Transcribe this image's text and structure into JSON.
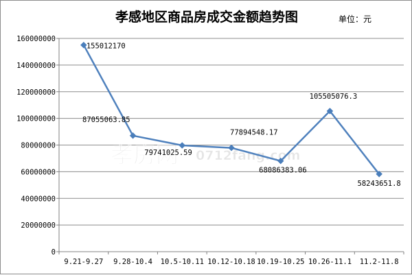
{
  "chart_data": {
    "type": "line",
    "title": "孝感地区商品房成交金额趋势图",
    "unit_label": "单位：元",
    "xlabel": "",
    "ylabel": "",
    "categories": [
      "9.21-9.27",
      "9.28-10.4",
      "10.5-10.11",
      "10.12-10.18",
      "10.19-10.25",
      "10.26-11.1",
      "11.2-11.8"
    ],
    "series": [
      {
        "values": [
          155012170,
          87055063.85,
          79741025.59,
          77894548.17,
          68086383.06,
          105505076.3,
          58243651.8
        ],
        "labels": [
          "155012170",
          "87055063.85",
          "79741025.59",
          "77894548.17",
          "68086383.06",
          "105505076.3",
          "58243651.8"
        ]
      }
    ],
    "y_ticks": [
      "0",
      "20000000",
      "40000000",
      "60000000",
      "80000000",
      "100000000",
      "120000000",
      "140000000",
      "160000000"
    ],
    "ylim": [
      0,
      160000000
    ],
    "grid": true,
    "legend": "none",
    "line_color": "#4f81bd",
    "marker_color": "#4a7ebb",
    "marker": "diamond"
  },
  "watermark": {
    "brand": "孝房网",
    "url": "0712fang.com"
  }
}
